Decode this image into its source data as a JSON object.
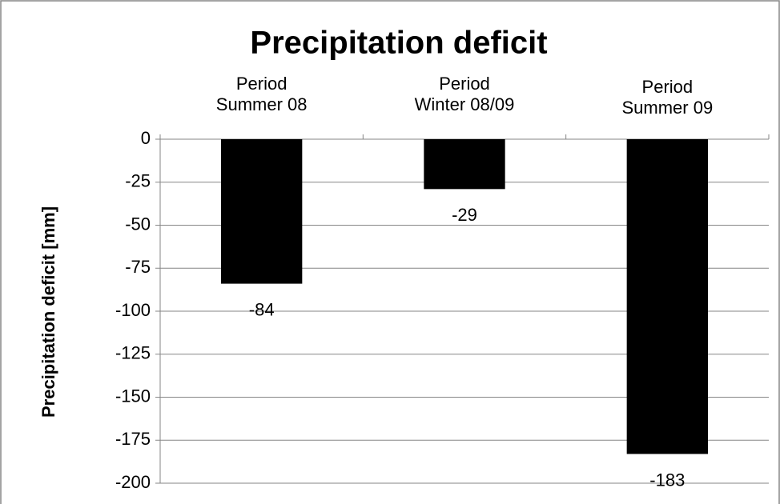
{
  "chart_data": {
    "type": "bar",
    "title": "Precipitation deficit",
    "y_label": "Precipitation deficit  [mm]",
    "categories": [
      "Period Summer 08",
      "Period Winter 08/09",
      "Period Summer 09"
    ],
    "values": [
      -84,
      -29,
      -183
    ],
    "color": "#000000",
    "ylim": [
      -200,
      0
    ],
    "yticks": [
      0,
      -25,
      -50,
      -75,
      -100,
      -125,
      -150,
      -175,
      -200
    ],
    "grid": true
  }
}
